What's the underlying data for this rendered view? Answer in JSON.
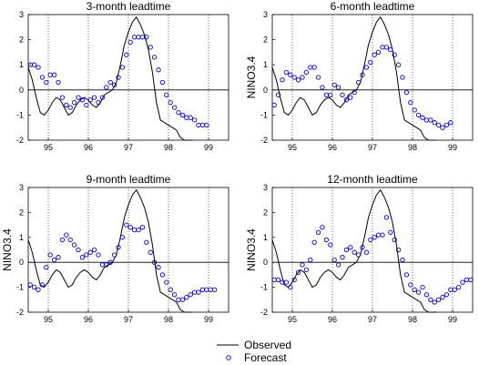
{
  "colors": {
    "observed": "#000000",
    "forecast": "#0000cc",
    "grid": "#000000"
  },
  "legend": {
    "observed_label": "Observed",
    "forecast_label": "Forecast"
  },
  "chart_data": [
    {
      "type": "line",
      "title": "3-month leadtime",
      "ylabel": "",
      "xlim": [
        94.5,
        99.5
      ],
      "ylim": [
        -2,
        3
      ],
      "xticks": [
        95,
        96,
        97,
        98,
        99
      ],
      "yticks": [
        -2,
        -1,
        0,
        1,
        2,
        3
      ],
      "grid": "dotted",
      "zero_line": true,
      "observed": {
        "x": [
          94.5,
          94.6,
          94.7,
          94.8,
          94.9,
          95.0,
          95.1,
          95.2,
          95.3,
          95.4,
          95.5,
          95.6,
          95.7,
          95.8,
          95.9,
          96.0,
          96.1,
          96.2,
          96.3,
          96.4,
          96.5,
          96.6,
          96.7,
          96.8,
          96.9,
          97.0,
          97.1,
          97.2,
          97.3,
          97.4,
          97.5,
          97.6,
          97.7,
          97.8,
          97.9,
          98.0,
          98.1,
          98.2,
          98.3,
          98.4,
          98.5,
          98.6
        ],
        "y": [
          0.9,
          0.4,
          -0.3,
          -0.9,
          -1.0,
          -0.8,
          -0.5,
          -0.3,
          -0.4,
          -0.7,
          -1.0,
          -0.9,
          -0.6,
          -0.4,
          -0.3,
          -0.4,
          -0.6,
          -0.7,
          -0.5,
          -0.2,
          -0.1,
          0.0,
          0.3,
          1.0,
          1.8,
          2.3,
          2.7,
          2.9,
          2.6,
          2.2,
          1.6,
          0.7,
          -0.5,
          -1.2,
          -1.3,
          -1.4,
          -1.5,
          -1.6,
          -1.9,
          -2.0,
          -2.0,
          -2.0
        ]
      },
      "forecast": {
        "x": [
          94.55,
          94.65,
          94.75,
          94.85,
          94.95,
          95.05,
          95.15,
          95.25,
          95.35,
          95.45,
          95.55,
          95.65,
          95.75,
          95.85,
          95.95,
          96.05,
          96.15,
          96.25,
          96.35,
          96.45,
          96.55,
          96.65,
          96.75,
          96.85,
          96.95,
          97.05,
          97.15,
          97.25,
          97.35,
          97.45,
          97.55,
          97.65,
          97.75,
          97.85,
          97.95,
          98.05,
          98.15,
          98.25,
          98.35,
          98.45,
          98.55,
          98.65,
          98.75,
          98.85,
          98.95
        ],
        "y": [
          1.0,
          1.0,
          0.9,
          0.5,
          0.3,
          0.6,
          0.6,
          0.3,
          -0.3,
          -0.6,
          -0.7,
          -0.5,
          -0.3,
          -0.4,
          -0.6,
          -0.4,
          -0.3,
          -0.5,
          -0.3,
          0.1,
          0.3,
          0.2,
          0.5,
          0.9,
          1.4,
          1.9,
          2.1,
          2.1,
          2.1,
          2.1,
          1.7,
          1.3,
          0.8,
          0.3,
          -0.2,
          -0.5,
          -0.7,
          -0.9,
          -1.0,
          -1.1,
          -1.1,
          -1.2,
          -1.4,
          -1.4,
          -1.4
        ]
      }
    },
    {
      "type": "line",
      "title": "6-month leadtime",
      "ylabel": "NINO3.4",
      "xlim": [
        94.5,
        99.5
      ],
      "ylim": [
        -2,
        3
      ],
      "xticks": [
        95,
        96,
        97,
        98,
        99
      ],
      "yticks": [
        -2,
        -1,
        0,
        1,
        2,
        3
      ],
      "grid": "dotted",
      "zero_line": true,
      "observed": {
        "x": [
          94.5,
          94.6,
          94.7,
          94.8,
          94.9,
          95.0,
          95.1,
          95.2,
          95.3,
          95.4,
          95.5,
          95.6,
          95.7,
          95.8,
          95.9,
          96.0,
          96.1,
          96.2,
          96.3,
          96.4,
          96.5,
          96.6,
          96.7,
          96.8,
          96.9,
          97.0,
          97.1,
          97.2,
          97.3,
          97.4,
          97.5,
          97.6,
          97.7,
          97.8,
          97.9,
          98.0,
          98.1,
          98.2,
          98.3,
          98.4,
          98.5,
          98.6
        ],
        "y": [
          0.9,
          0.4,
          -0.3,
          -0.9,
          -1.0,
          -0.8,
          -0.5,
          -0.3,
          -0.4,
          -0.7,
          -1.0,
          -0.9,
          -0.6,
          -0.4,
          -0.3,
          -0.4,
          -0.6,
          -0.7,
          -0.5,
          -0.2,
          -0.1,
          0.0,
          0.3,
          1.0,
          1.8,
          2.3,
          2.7,
          2.9,
          2.6,
          2.2,
          1.6,
          0.7,
          -0.5,
          -1.2,
          -1.3,
          -1.4,
          -1.5,
          -1.6,
          -1.9,
          -2.0,
          -2.0,
          -2.0
        ]
      },
      "forecast": {
        "x": [
          94.55,
          94.65,
          94.75,
          94.85,
          94.95,
          95.05,
          95.15,
          95.25,
          95.35,
          95.45,
          95.55,
          95.65,
          95.75,
          95.85,
          95.95,
          96.05,
          96.15,
          96.25,
          96.35,
          96.45,
          96.55,
          96.65,
          96.75,
          96.85,
          96.95,
          97.05,
          97.15,
          97.25,
          97.35,
          97.45,
          97.55,
          97.65,
          97.75,
          97.85,
          97.95,
          98.05,
          98.15,
          98.25,
          98.35,
          98.45,
          98.55,
          98.65,
          98.75,
          98.85,
          98.95
        ],
        "y": [
          -0.6,
          -0.2,
          0.4,
          0.7,
          0.6,
          0.5,
          0.4,
          0.5,
          0.7,
          0.9,
          0.9,
          0.5,
          0.1,
          -0.2,
          -0.2,
          0.2,
          0.1,
          -0.2,
          -0.4,
          -0.3,
          -0.1,
          0.3,
          0.6,
          0.9,
          1.1,
          1.4,
          1.5,
          1.7,
          1.7,
          1.6,
          1.4,
          1.0,
          0.5,
          -0.1,
          -0.5,
          -0.8,
          -1.0,
          -1.1,
          -1.2,
          -1.2,
          -1.3,
          -1.4,
          -1.5,
          -1.4,
          -1.3
        ]
      }
    },
    {
      "type": "line",
      "title": "9-month leadtime",
      "ylabel": "NINO3.4",
      "xlim": [
        94.5,
        99.5
      ],
      "ylim": [
        -2,
        3
      ],
      "xticks": [
        95,
        96,
        97,
        98,
        99
      ],
      "yticks": [
        -2,
        -1,
        0,
        1,
        2,
        3
      ],
      "grid": "dotted",
      "zero_line": true,
      "observed": {
        "x": [
          94.5,
          94.6,
          94.7,
          94.8,
          94.9,
          95.0,
          95.1,
          95.2,
          95.3,
          95.4,
          95.5,
          95.6,
          95.7,
          95.8,
          95.9,
          96.0,
          96.1,
          96.2,
          96.3,
          96.4,
          96.5,
          96.6,
          96.7,
          96.8,
          96.9,
          97.0,
          97.1,
          97.2,
          97.3,
          97.4,
          97.5,
          97.6,
          97.7,
          97.8,
          97.9,
          98.0,
          98.1,
          98.2,
          98.3,
          98.4,
          98.5,
          98.6
        ],
        "y": [
          0.9,
          0.4,
          -0.3,
          -0.9,
          -1.0,
          -0.8,
          -0.5,
          -0.3,
          -0.4,
          -0.7,
          -1.0,
          -0.9,
          -0.6,
          -0.4,
          -0.3,
          -0.4,
          -0.6,
          -0.7,
          -0.5,
          -0.2,
          -0.1,
          0.0,
          0.3,
          1.0,
          1.8,
          2.3,
          2.7,
          2.9,
          2.6,
          2.2,
          1.6,
          0.7,
          -0.5,
          -1.2,
          -1.3,
          -1.4,
          -1.5,
          -1.6,
          -1.9,
          -2.0,
          -2.0,
          -2.0
        ]
      },
      "forecast": {
        "x": [
          94.55,
          94.65,
          94.75,
          94.85,
          94.95,
          95.05,
          95.15,
          95.25,
          95.35,
          95.45,
          95.55,
          95.65,
          95.75,
          95.85,
          95.95,
          96.05,
          96.15,
          96.25,
          96.35,
          96.45,
          96.55,
          96.65,
          96.75,
          96.85,
          96.95,
          97.05,
          97.15,
          97.25,
          97.35,
          97.45,
          97.55,
          97.65,
          97.75,
          97.85,
          97.95,
          98.05,
          98.15,
          98.25,
          98.35,
          98.45,
          98.55,
          98.65,
          98.75,
          98.85,
          98.95,
          99.05,
          99.15
        ],
        "y": [
          -0.9,
          -1.0,
          -1.1,
          -0.9,
          -0.2,
          0.3,
          0.1,
          0.2,
          0.9,
          1.1,
          0.9,
          0.7,
          0.5,
          0.2,
          0.3,
          0.4,
          0.5,
          0.3,
          -0.1,
          -0.1,
          0.0,
          0.3,
          0.6,
          1.0,
          1.5,
          1.4,
          1.3,
          1.3,
          1.4,
          0.8,
          0.4,
          0.0,
          -0.2,
          -0.5,
          -0.8,
          -1.1,
          -1.3,
          -1.5,
          -1.5,
          -1.4,
          -1.3,
          -1.2,
          -1.2,
          -1.1,
          -1.1,
          -1.1,
          -1.1
        ]
      }
    },
    {
      "type": "line",
      "title": "12-month leadtime",
      "ylabel": "NINO3.4",
      "xlim": [
        94.5,
        99.5
      ],
      "ylim": [
        -2,
        3
      ],
      "xticks": [
        95,
        96,
        97,
        98,
        99
      ],
      "yticks": [
        -2,
        -1,
        0,
        1,
        2,
        3
      ],
      "grid": "dotted",
      "zero_line": true,
      "observed": {
        "x": [
          94.5,
          94.6,
          94.7,
          94.8,
          94.9,
          95.0,
          95.1,
          95.2,
          95.3,
          95.4,
          95.5,
          95.6,
          95.7,
          95.8,
          95.9,
          96.0,
          96.1,
          96.2,
          96.3,
          96.4,
          96.5,
          96.6,
          96.7,
          96.8,
          96.9,
          97.0,
          97.1,
          97.2,
          97.3,
          97.4,
          97.5,
          97.6,
          97.7,
          97.8,
          97.9,
          98.0,
          98.1,
          98.2,
          98.3,
          98.4,
          98.5,
          98.6
        ],
        "y": [
          0.9,
          0.4,
          -0.3,
          -0.9,
          -1.0,
          -0.8,
          -0.5,
          -0.3,
          -0.4,
          -0.7,
          -1.0,
          -0.9,
          -0.6,
          -0.4,
          -0.3,
          -0.4,
          -0.6,
          -0.7,
          -0.5,
          -0.2,
          -0.1,
          0.0,
          0.3,
          1.0,
          1.8,
          2.3,
          2.7,
          2.9,
          2.6,
          2.2,
          1.6,
          0.7,
          -0.5,
          -1.2,
          -1.3,
          -1.4,
          -1.5,
          -1.6,
          -1.9,
          -2.0,
          -2.0,
          -2.0
        ]
      },
      "forecast": {
        "x": [
          94.55,
          94.65,
          94.75,
          94.85,
          94.95,
          95.05,
          95.15,
          95.25,
          95.35,
          95.45,
          95.55,
          95.65,
          95.75,
          95.85,
          95.95,
          96.05,
          96.15,
          96.25,
          96.35,
          96.45,
          96.55,
          96.65,
          96.75,
          96.85,
          96.95,
          97.05,
          97.15,
          97.25,
          97.35,
          97.45,
          97.55,
          97.65,
          97.75,
          97.85,
          97.95,
          98.05,
          98.15,
          98.25,
          98.35,
          98.45,
          98.55,
          98.65,
          98.75,
          98.85,
          98.95,
          99.05,
          99.15,
          99.25,
          99.35,
          99.45
        ],
        "y": [
          -0.7,
          -0.7,
          -0.8,
          -0.8,
          -1.0,
          -0.7,
          -0.4,
          -0.1,
          -0.3,
          0.1,
          0.8,
          1.2,
          1.4,
          0.9,
          0.7,
          0.1,
          -0.1,
          0.2,
          0.5,
          0.6,
          0.4,
          0.3,
          0.6,
          0.4,
          0.9,
          1.0,
          1.1,
          1.1,
          1.8,
          1.2,
          0.9,
          0.5,
          0.1,
          -0.5,
          -0.9,
          -1.1,
          -1.2,
          -1.0,
          -1.3,
          -1.5,
          -1.6,
          -1.5,
          -1.4,
          -1.3,
          -1.1,
          -1.1,
          -1.0,
          -0.8,
          -0.7,
          -0.7
        ]
      }
    }
  ]
}
